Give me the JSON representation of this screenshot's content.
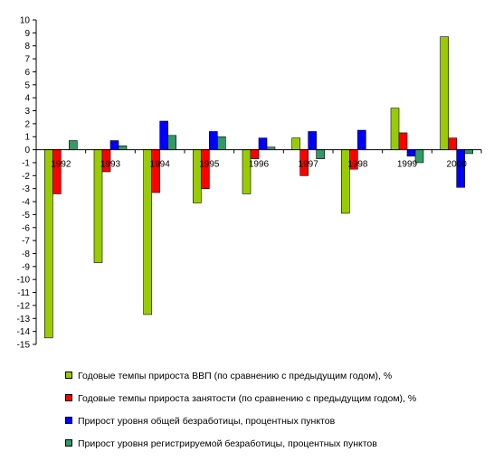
{
  "chart_data": {
    "type": "bar",
    "categories": [
      "1992",
      "1993",
      "1994",
      "1995",
      "1996",
      "1997",
      "1998",
      "1999",
      "2000"
    ],
    "series": [
      {
        "name": "Годовые темпы прироста  ВВП (по сравнению с предыдущим годом), %",
        "color": "#99cc00",
        "values": [
          -14.5,
          -8.7,
          -12.7,
          -4.1,
          -3.4,
          0.9,
          -4.9,
          3.2,
          8.7
        ]
      },
      {
        "name": "Годовые темпы прироста  занятости (по сравнению с предыдущим годом), %",
        "color": "#ff0000",
        "values": [
          -3.4,
          -1.7,
          -3.3,
          -3.0,
          -0.7,
          -2.0,
          -1.5,
          1.3,
          0.9
        ]
      },
      {
        "name": "Прирост уровня общей безработицы, процентных пунктов",
        "color": "#0000ff",
        "values": [
          0.0,
          0.7,
          2.2,
          1.4,
          0.9,
          1.4,
          1.5,
          -0.5,
          -2.9
        ]
      },
      {
        "name": "Прирост уровня регистрируемой безработицы, процентных пунктов",
        "color": "#339966",
        "values": [
          0.7,
          0.3,
          1.1,
          1.0,
          0.2,
          -0.7,
          0.0,
          -1.0,
          -0.3
        ]
      }
    ],
    "ylim": [
      -15,
      10
    ],
    "yticks": [
      10,
      9,
      8,
      7,
      6,
      5,
      4,
      3,
      2,
      1,
      0,
      -1,
      -2,
      -3,
      -4,
      -5,
      -6,
      -7,
      -8,
      -9,
      -10,
      -11,
      -12,
      -13,
      -14,
      -15
    ],
    "grid": false,
    "legend_position": "bottom"
  }
}
